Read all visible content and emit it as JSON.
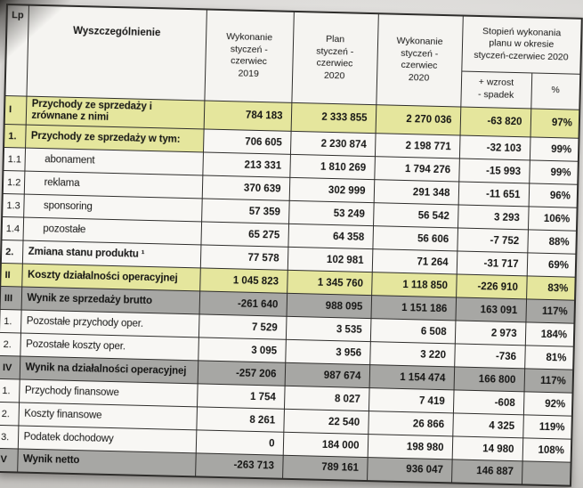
{
  "colors": {
    "yellow_highlight": "#e5e69d",
    "gray_highlight": "#a7a7a4",
    "border": "#2e2d2b",
    "paper": "#f8f7f4"
  },
  "table": {
    "headers": {
      "lp": "Lp",
      "name": "Wyszczególnienie",
      "col_2019": "Wykonanie\nstyczeń -\nczerwiec\n2019",
      "col_plan_2020": "Plan\nstyczeń -\nczerwiec\n2020",
      "col_2020": "Wykonanie\nstyczeń -\nczerwiec\n2020",
      "col_degree": "Stopień wykonania\nplanu w okresie\nstyczeń-czerwiec 2020",
      "col_delta": "+ wzrost\n- spadek",
      "col_pct": "%"
    },
    "rows": [
      {
        "lp": "I",
        "label": "Przychody ze sprzedaży i zrównane z nimi",
        "style": "yellow",
        "bold": true,
        "indent": false,
        "values": [
          "784 183",
          "2 333 855",
          "2 270 036",
          "-63 820",
          "97%"
        ]
      },
      {
        "lp": "1.",
        "label": "Przychody ze sprzedaży w tym:",
        "style": "yellow-label",
        "bold": true,
        "indent": false,
        "values": [
          "706 605",
          "2 230 874",
          "2 198 771",
          "-32 103",
          "99%"
        ]
      },
      {
        "lp": "1.1",
        "label": "abonament",
        "style": "plain",
        "bold": false,
        "indent": true,
        "values": [
          "213 331",
          "1 810 269",
          "1 794 276",
          "-15 993",
          "99%"
        ]
      },
      {
        "lp": "1.2",
        "label": "reklama",
        "style": "plain",
        "bold": false,
        "indent": true,
        "values": [
          "370 639",
          "302 999",
          "291 348",
          "-11 651",
          "96%"
        ]
      },
      {
        "lp": "1.3",
        "label": "sponsoring",
        "style": "plain",
        "bold": false,
        "indent": true,
        "values": [
          "57 359",
          "53 249",
          "56 542",
          "3 293",
          "106%"
        ]
      },
      {
        "lp": "1.4",
        "label": "pozostałe",
        "style": "plain",
        "bold": false,
        "indent": true,
        "values": [
          "65 275",
          "64 358",
          "56 606",
          "-7 752",
          "88%"
        ]
      },
      {
        "lp": "2.",
        "label": "Zmiana stanu produktu ¹",
        "style": "plain",
        "bold": true,
        "indent": false,
        "values": [
          "77 578",
          "102 981",
          "71 264",
          "-31 717",
          "69%"
        ]
      },
      {
        "lp": "II",
        "label": "Koszty działalności operacyjnej",
        "style": "yellow",
        "bold": true,
        "indent": false,
        "values": [
          "1 045 823",
          "1 345 760",
          "1 118 850",
          "-226 910",
          "83%"
        ]
      },
      {
        "lp": "III",
        "label": "Wynik ze sprzedaży brutto",
        "style": "gray",
        "bold": true,
        "indent": false,
        "values": [
          "-261 640",
          "988 095",
          "1 151 186",
          "163 091",
          "117%"
        ]
      },
      {
        "lp": "1.",
        "label": "Pozostałe przychody oper.",
        "style": "plain",
        "bold": false,
        "indent": false,
        "values": [
          "7 529",
          "3 535",
          "6 508",
          "2 973",
          "184%"
        ]
      },
      {
        "lp": "2.",
        "label": "Pozostałe koszty oper.",
        "style": "plain",
        "bold": false,
        "indent": false,
        "values": [
          "3 095",
          "3 956",
          "3 220",
          "-736",
          "81%"
        ]
      },
      {
        "lp": "IV",
        "label": "Wynik na działalności operacyjnej",
        "style": "gray",
        "bold": true,
        "indent": false,
        "values": [
          "-257 206",
          "987 674",
          "1 154 474",
          "166 800",
          "117%"
        ]
      },
      {
        "lp": "1.",
        "label": "Przychody finansowe",
        "style": "plain",
        "bold": false,
        "indent": false,
        "values": [
          "1 754",
          "8 027",
          "7 419",
          "-608",
          "92%"
        ]
      },
      {
        "lp": "2.",
        "label": "Koszty finansowe",
        "style": "plain",
        "bold": false,
        "indent": false,
        "values": [
          "8 261",
          "22 540",
          "26 866",
          "4 325",
          "119%"
        ]
      },
      {
        "lp": "3.",
        "label": "Podatek dochodowy",
        "style": "plain",
        "bold": false,
        "indent": false,
        "values": [
          "0",
          "184 000",
          "198 980",
          "14 980",
          "108%"
        ]
      },
      {
        "lp": "V",
        "label": "Wynik netto",
        "style": "gray",
        "bold": true,
        "indent": false,
        "values": [
          "-263 713",
          "789 161",
          "936 047",
          "146 887",
          ""
        ]
      }
    ]
  }
}
